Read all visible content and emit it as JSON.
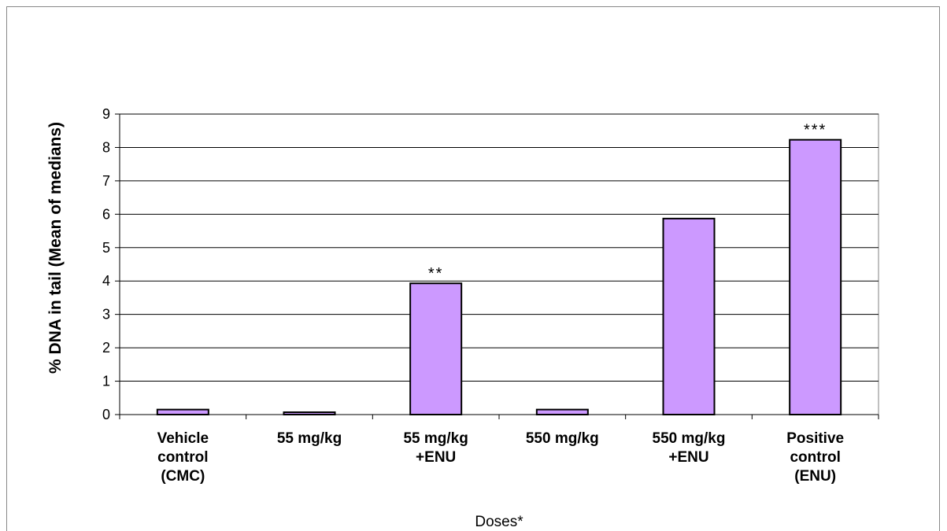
{
  "chart_data": {
    "type": "bar",
    "categories": [
      [
        "Vehicle",
        "control",
        "(CMC)"
      ],
      [
        "55 mg/kg"
      ],
      [
        "55 mg/kg",
        "+ENU"
      ],
      [
        "550 mg/kg"
      ],
      [
        "550 mg/kg",
        "+ENU"
      ],
      [
        "Positive",
        "control",
        "(ENU)"
      ]
    ],
    "values": [
      0.15,
      0.07,
      3.93,
      0.15,
      5.87,
      8.23
    ],
    "annotations": [
      "",
      "",
      "**",
      "",
      "",
      "***"
    ],
    "title": "",
    "xlabel": "Doses*",
    "ylabel": "% DNA in tail (Mean of medians)",
    "ylim": [
      0,
      9
    ],
    "yticks": [
      0,
      1,
      2,
      3,
      4,
      5,
      6,
      7,
      8,
      9
    ],
    "grid": true,
    "legend": "none",
    "colors": {
      "bar_fill": "#cc99ff",
      "bar_stroke": "#000000",
      "gridline": "#000000",
      "plot_border": "#808080"
    }
  }
}
